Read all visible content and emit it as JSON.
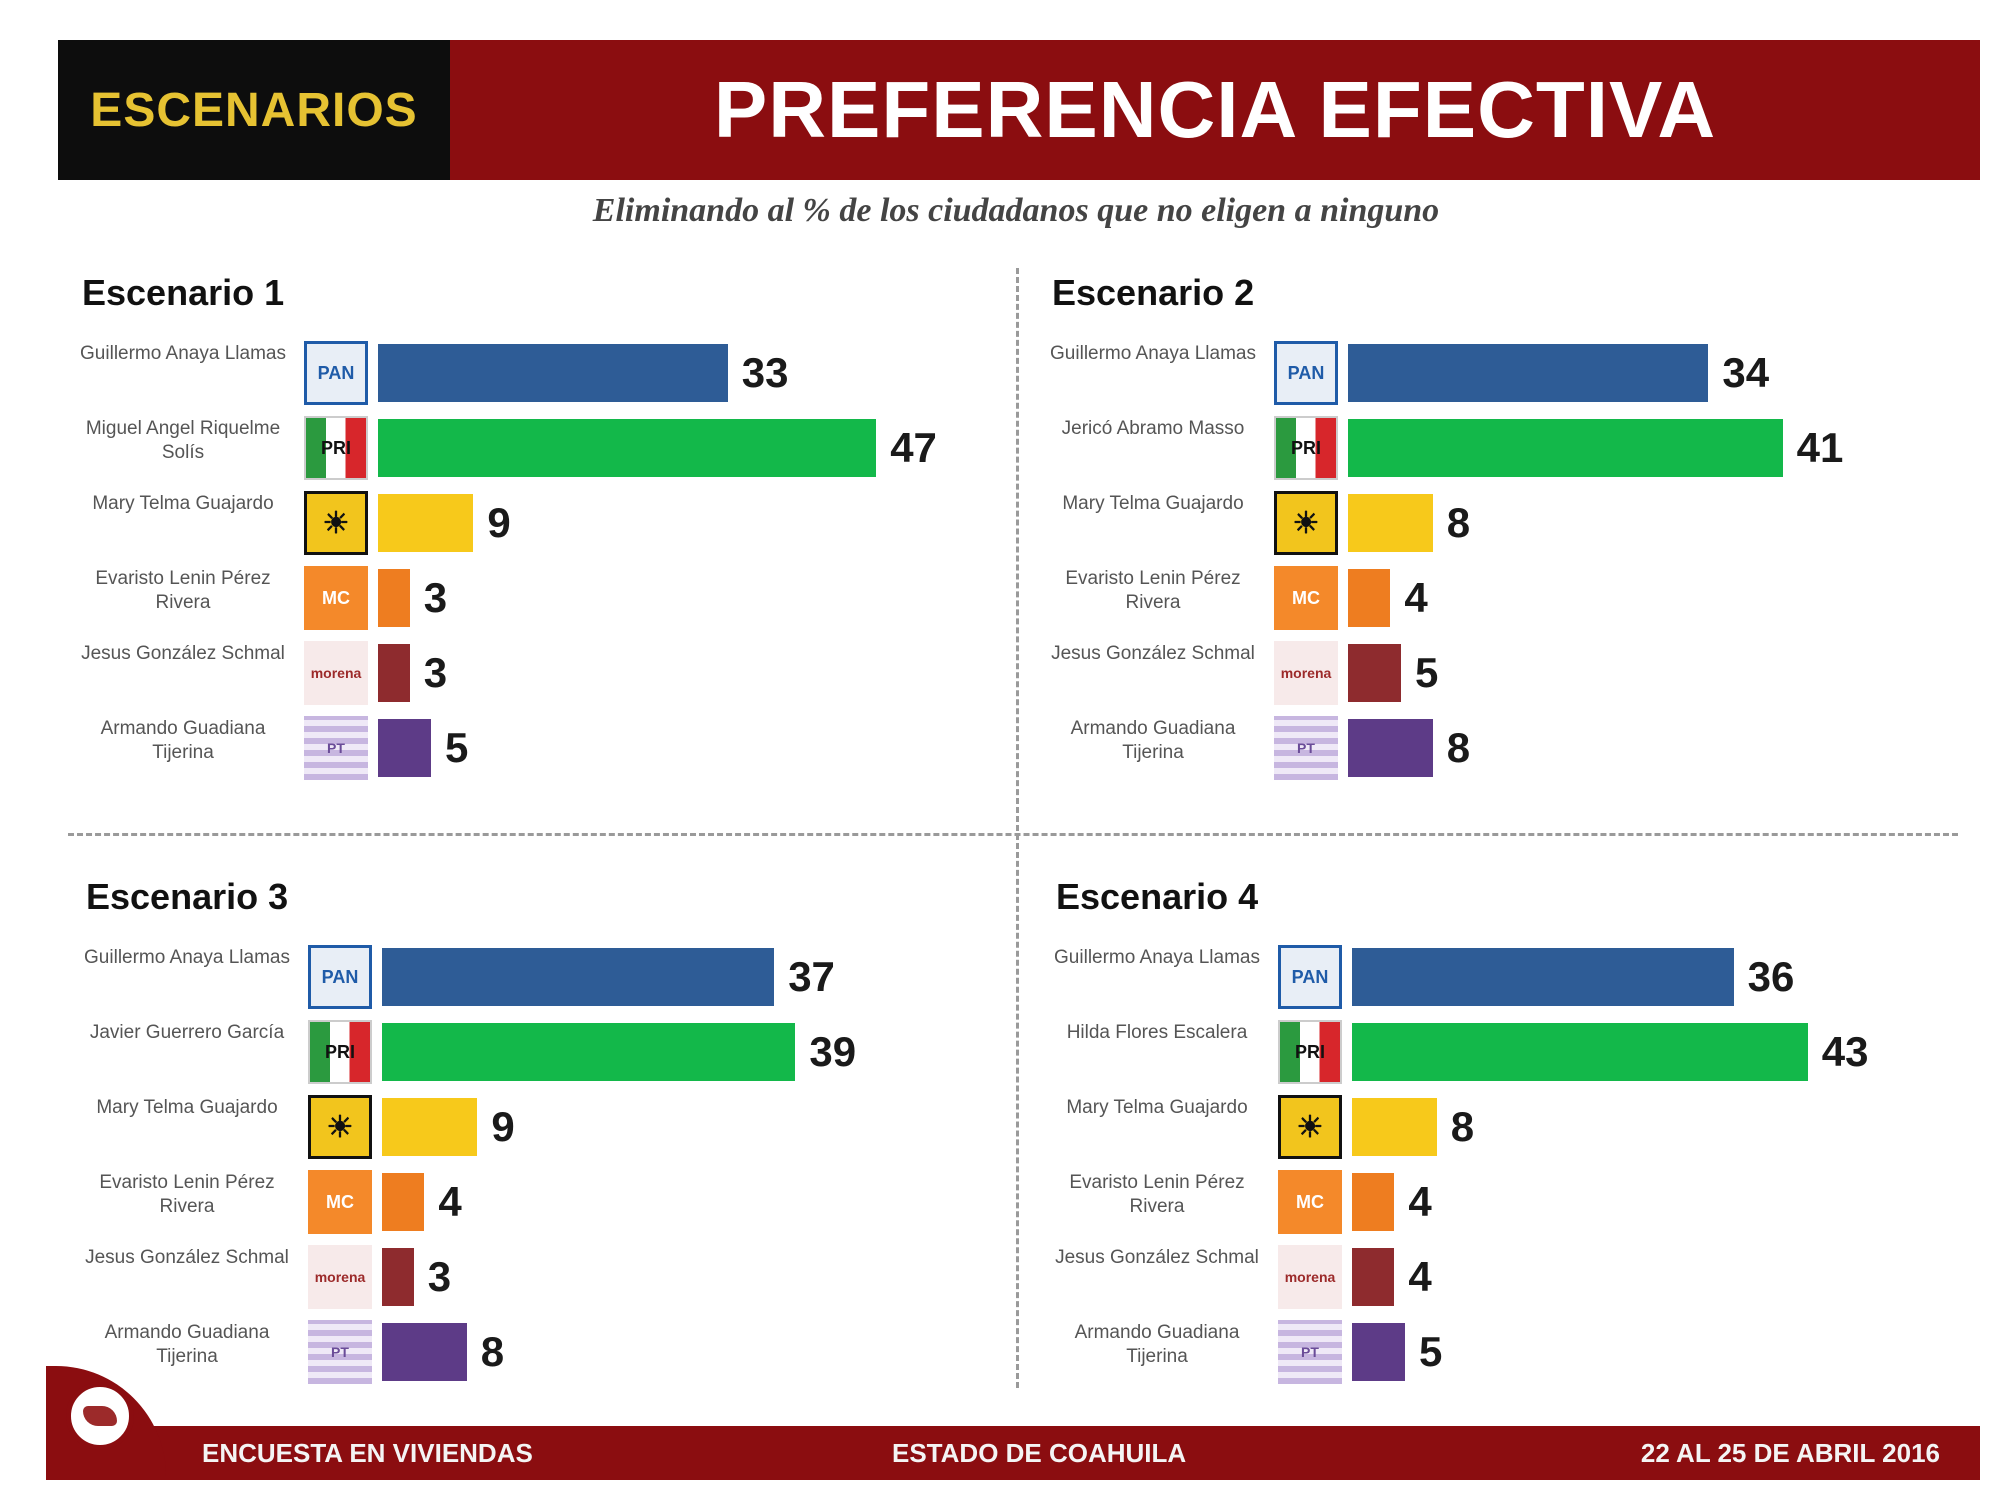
{
  "header": {
    "tag": "ESCENARIOS",
    "title": "PREFERENCIA EFECTIVA",
    "subtitle": "Eliminando al % de los ciudadanos que no eligen a ninguno"
  },
  "colors": {
    "header_dark": "#0d0d0d",
    "header_red": "#8b0d10",
    "tag_yellow": "#e6c232",
    "PAN": "#2e5c96",
    "PRI": "#13b84a",
    "PRD": "#f7c91b",
    "MC": "#ee7d20",
    "MORENA": "#8e2b2e",
    "PT": "#5d3b87"
  },
  "logos": {
    "PAN": "PAN",
    "PRI": "PRI",
    "PRD": "☀",
    "MC": "MC",
    "MORENA": "morena",
    "PT": "PT"
  },
  "chart_data": [
    {
      "type": "bar",
      "title": "Escenario 1",
      "categories": [
        "Guillermo Anaya Llamas",
        "Miguel Angel Riquelme Solís",
        "Mary Telma Guajardo",
        "Evaristo Lenin Pérez Rivera",
        "Jesus González Schmal",
        "Armando Guadiana Tijerina"
      ],
      "parties": [
        "PAN",
        "PRI",
        "PRD",
        "MC",
        "MORENA",
        "PT"
      ],
      "values": [
        33,
        47,
        9,
        3,
        3,
        5
      ],
      "xlim": [
        0,
        50
      ]
    },
    {
      "type": "bar",
      "title": "Escenario 2",
      "categories": [
        "Guillermo Anaya Llamas",
        "Jericó Abramo Masso",
        "Mary Telma Guajardo",
        "Evaristo Lenin Pérez Rivera",
        "Jesus González Schmal",
        "Armando Guadiana Tijerina"
      ],
      "parties": [
        "PAN",
        "PRI",
        "PRD",
        "MC",
        "MORENA",
        "PT"
      ],
      "values": [
        34,
        41,
        8,
        4,
        5,
        8
      ],
      "xlim": [
        0,
        50
      ]
    },
    {
      "type": "bar",
      "title": "Escenario 3",
      "categories": [
        "Guillermo Anaya Llamas",
        "Javier Guerrero García",
        "Mary Telma Guajardo",
        "Evaristo Lenin Pérez Rivera",
        "Jesus González Schmal",
        "Armando Guadiana Tijerina"
      ],
      "parties": [
        "PAN",
        "PRI",
        "PRD",
        "MC",
        "MORENA",
        "PT"
      ],
      "values": [
        37,
        39,
        9,
        4,
        3,
        8
      ],
      "xlim": [
        0,
        50
      ]
    },
    {
      "type": "bar",
      "title": "Escenario 4",
      "categories": [
        "Guillermo Anaya Llamas",
        "Hilda Flores Escalera",
        "Mary Telma Guajardo",
        "Evaristo Lenin Pérez Rivera",
        "Jesus González Schmal",
        "Armando Guadiana Tijerina"
      ],
      "parties": [
        "PAN",
        "PRI",
        "PRD",
        "MC",
        "MORENA",
        "PT"
      ],
      "values": [
        36,
        43,
        8,
        4,
        4,
        5
      ],
      "xlim": [
        0,
        50
      ]
    }
  ],
  "footer": {
    "left": "ENCUESTA   EN VIVIENDAS",
    "center": "ESTADO DE COAHUILA",
    "right": "22 AL 25 DE ABRIL 2016"
  }
}
